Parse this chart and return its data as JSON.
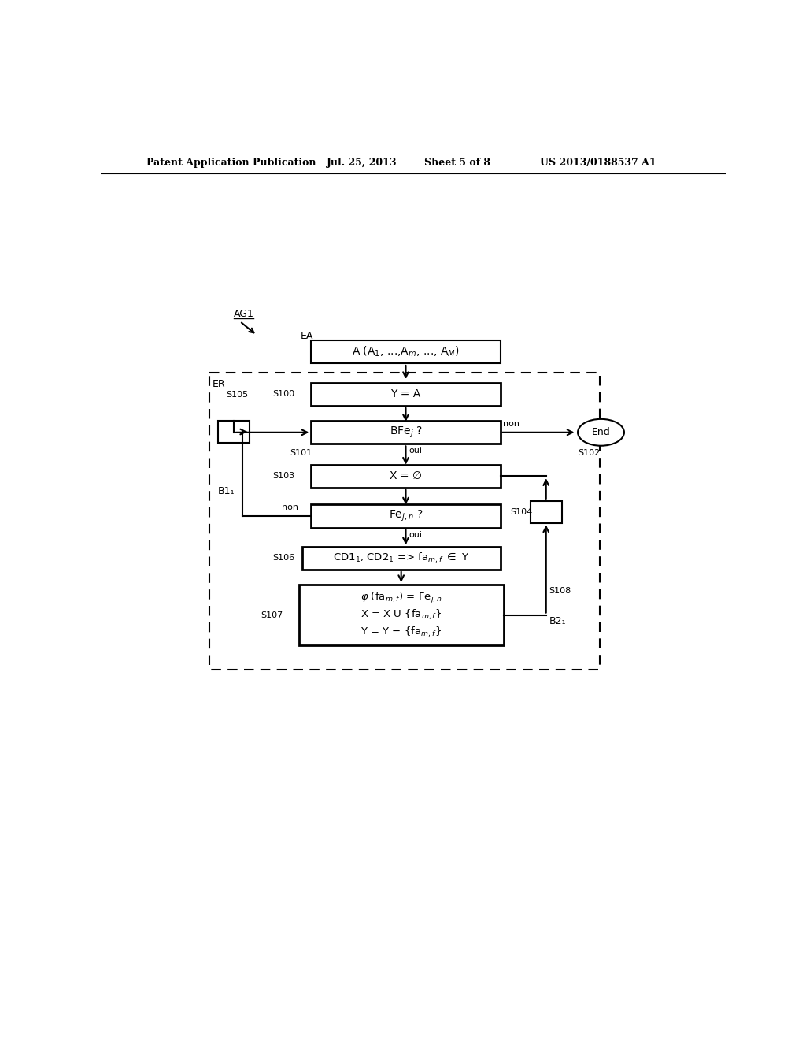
{
  "bg_color": "#ffffff",
  "header_text": "Patent Application Publication",
  "header_date": "Jul. 25, 2013",
  "header_sheet": "Sheet 5 of 8",
  "header_patent": "US 2013/0188537 A1",
  "ag1_label": "AG1",
  "ea_label": "EA",
  "er_label": "ER",
  "s105_label": "S105",
  "s100_label": "S100",
  "s101_label": "S101",
  "s102_label": "S102",
  "s103_label": "S103",
  "s104_label": "S104",
  "s106_label": "S106",
  "s107_label": "S107",
  "s108_label": "S108",
  "b11_label": "B1₁",
  "b21_label": "B2₁",
  "non_label": "non",
  "oui_label": "oui"
}
